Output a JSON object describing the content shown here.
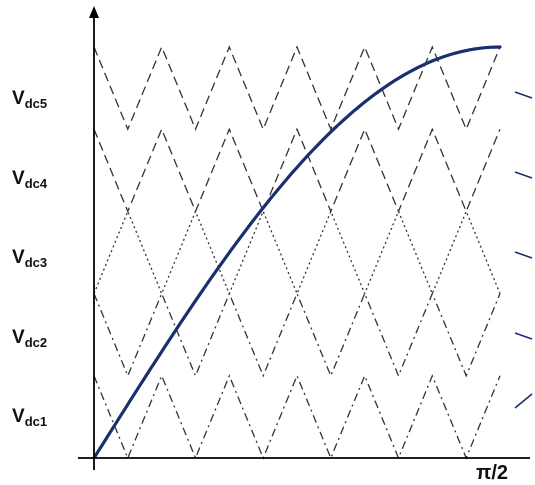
{
  "figure": {
    "levels": [
      {
        "main": "V",
        "sub": "dc1",
        "style": "dashdot"
      },
      {
        "main": "V",
        "sub": "dc2",
        "style": "dashdot"
      },
      {
        "main": "V",
        "sub": "dc3",
        "style": "dotted"
      },
      {
        "main": "V",
        "sub": "dc4",
        "style": "dashed"
      },
      {
        "main": "V",
        "sub": "dc5",
        "style": "dashed"
      }
    ],
    "x_end_label": "π/2",
    "triangle_periods_per_band": 6,
    "reference_wave": "sine",
    "colors": {
      "axes": "#000000",
      "carrier": "#333333",
      "reference": "#1a2f6e",
      "side_marks": "#1a2f6e"
    }
  }
}
